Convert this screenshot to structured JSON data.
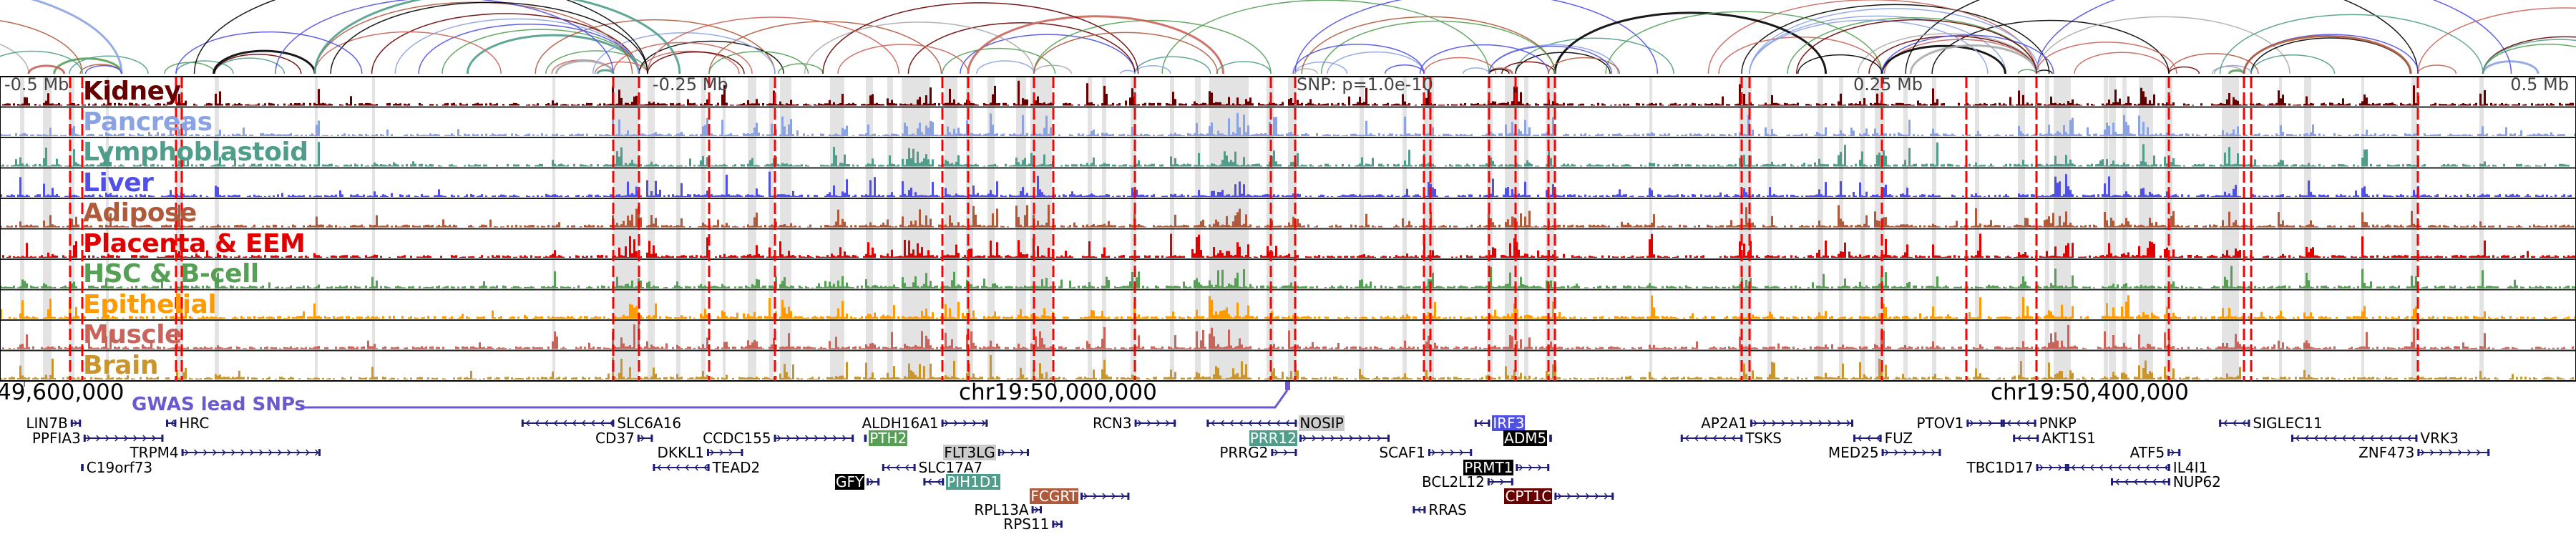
{
  "axis": {
    "left_label": "49,600,000",
    "mid_label": "chr19:50,000,000",
    "right_label": "chr19:50,400,000"
  },
  "offsets": {
    "minus_half": "-0.5 Mb",
    "minus_quarter": "-0.25 Mb",
    "plus_quarter": "0.25 Mb",
    "plus_half": "0.5 Mb"
  },
  "snp_label": "SNP: p=1.0e-10",
  "gwas_label": "GWAS lead SNPs",
  "colors": {
    "gene": "#1e1e78",
    "gwas": "#6a5acd",
    "snp_line": "#ff0000",
    "highlight_band": "#e3e3e3"
  },
  "tissues": [
    {
      "name": "Kidney",
      "color": "#660000"
    },
    {
      "name": "Pancreas",
      "color": "#8ca3e3"
    },
    {
      "name": "Lymphoblastoid",
      "color": "#4f9d8a"
    },
    {
      "name": "Liver",
      "color": "#5050e6"
    },
    {
      "name": "Adipose",
      "color": "#b05a3c"
    },
    {
      "name": "Placenta & EEM",
      "color": "#e00000"
    },
    {
      "name": "HSC & B-cell",
      "color": "#55a055"
    },
    {
      "name": "Epithelial",
      "color": "#ff9a00"
    },
    {
      "name": "Muscle",
      "color": "#c8645a"
    },
    {
      "name": "Brain",
      "color": "#c8962d"
    }
  ],
  "genes": [
    {
      "name": "LIN7B",
      "start": 49618,
      "end": 49622,
      "strand": "+",
      "row": 1,
      "label": "left"
    },
    {
      "name": "HRC",
      "start": 49655,
      "end": 49659,
      "strand": "-",
      "row": 1,
      "label": "right"
    },
    {
      "name": "PPFIA3",
      "start": 49623,
      "end": 49654,
      "strand": "+",
      "row": 2,
      "label": "left"
    },
    {
      "name": "TRPM4",
      "start": 49661,
      "end": 49715,
      "strand": "+",
      "row": 3,
      "label": "left"
    },
    {
      "name": "C19orf73",
      "start": 49622,
      "end": 49623,
      "strand": "-",
      "row": 4,
      "label": "right"
    },
    {
      "name": "SLC6A16",
      "start": 49793,
      "end": 49829,
      "strand": "-",
      "row": 1,
      "label": "right"
    },
    {
      "name": "CD37",
      "start": 49838,
      "end": 49844,
      "strand": "+",
      "row": 2,
      "label": "left"
    },
    {
      "name": "CCDC155",
      "start": 49891,
      "end": 49922,
      "strand": "+",
      "row": 2,
      "label": "left"
    },
    {
      "name": "DKKL1",
      "start": 49865,
      "end": 49879,
      "strand": "+",
      "row": 3,
      "label": "left"
    },
    {
      "name": "TEAD2",
      "start": 49844,
      "end": 49866,
      "strand": "-",
      "row": 4,
      "label": "right"
    },
    {
      "name": "GFY",
      "start": 49927,
      "end": 49932,
      "strand": "+",
      "row": 5,
      "label": "left",
      "box": "#000000",
      "text": "#ffffff"
    },
    {
      "name": "ALDH16A1",
      "start": 49956,
      "end": 49974,
      "strand": "+",
      "row": 1,
      "label": "left"
    },
    {
      "name": "PTH2",
      "start": 49926,
      "end": 49927,
      "strand": "-",
      "row": 2,
      "label": "right",
      "box": "#55a055",
      "text": "#ffffff"
    },
    {
      "name": "FLT3LG",
      "start": 49978,
      "end": 49990,
      "strand": "+",
      "row": 3,
      "label": "left",
      "box": "#cccccc",
      "text": "#000000"
    },
    {
      "name": "SLC17A7",
      "start": 49933,
      "end": 49946,
      "strand": "-",
      "row": 4,
      "label": "right"
    },
    {
      "name": "PIH1D1",
      "start": 49949,
      "end": 49957,
      "strand": "-",
      "row": 5,
      "label": "right",
      "box": "#4f9d8a",
      "text": "#ffffff"
    },
    {
      "name": "FCGRT",
      "start": 50010,
      "end": 50029,
      "strand": "+",
      "row": 6,
      "label": "left",
      "box": "#b05a3c",
      "text": "#ffffff"
    },
    {
      "name": "RPL13A",
      "start": 49991,
      "end": 49995,
      "strand": "+",
      "row": 7,
      "label": "left"
    },
    {
      "name": "RPS11",
      "start": 49999,
      "end": 50003,
      "strand": "+",
      "row": 8,
      "label": "left"
    },
    {
      "name": "RCN3",
      "start": 50031,
      "end": 50047,
      "strand": "+",
      "row": 1,
      "label": "left"
    },
    {
      "name": "NOSIP",
      "start": 50059,
      "end": 50094,
      "strand": "-",
      "row": 1,
      "label": "right",
      "box": "#cccccc",
      "text": "#000000"
    },
    {
      "name": "PRR12",
      "start": 50095,
      "end": 50130,
      "strand": "+",
      "row": 2,
      "label": "left",
      "box": "#4f9d8a",
      "text": "#ffffff"
    },
    {
      "name": "PRRG2",
      "start": 50084,
      "end": 50094,
      "strand": "+",
      "row": 3,
      "label": "left"
    },
    {
      "name": "SCAF1",
      "start": 50145,
      "end": 50162,
      "strand": "+",
      "row": 3,
      "label": "left"
    },
    {
      "name": "IRF3",
      "start": 50163,
      "end": 50169,
      "strand": "-",
      "row": 1,
      "label": "right",
      "box": "#5050e6",
      "text": "#ffffff"
    },
    {
      "name": "ADM5",
      "start": 50192,
      "end": 50193,
      "strand": "+",
      "row": 2,
      "label": "left",
      "box": "#000000",
      "text": "#ffffff"
    },
    {
      "name": "PRMT1",
      "start": 50179,
      "end": 50192,
      "strand": "+",
      "row": 4,
      "label": "left",
      "box": "#000000",
      "text": "#ffffff"
    },
    {
      "name": "BCL2L12",
      "start": 50168,
      "end": 50178,
      "strand": "+",
      "row": 5,
      "label": "left"
    },
    {
      "name": "CPT1C",
      "start": 50194,
      "end": 50217,
      "strand": "+",
      "row": 6,
      "label": "left",
      "box": "#660000",
      "text": "#ffffff"
    },
    {
      "name": "RRAS",
      "start": 50139,
      "end": 50144,
      "strand": "-",
      "row": 7,
      "label": "right"
    },
    {
      "name": "AP2A1",
      "start": 50270,
      "end": 50310,
      "strand": "+",
      "row": 1,
      "label": "left"
    },
    {
      "name": "TSKS",
      "start": 50243,
      "end": 50267,
      "strand": "-",
      "row": 2,
      "label": "right"
    },
    {
      "name": "FUZ",
      "start": 50310,
      "end": 50321,
      "strand": "-",
      "row": 2,
      "label": "right"
    },
    {
      "name": "MED25",
      "start": 50321,
      "end": 50344,
      "strand": "+",
      "row": 3,
      "label": "left"
    },
    {
      "name": "PTOV1",
      "start": 50354,
      "end": 50368,
      "strand": "+",
      "row": 1,
      "label": "left"
    },
    {
      "name": "PNKP",
      "start": 50368,
      "end": 50381,
      "strand": "-",
      "row": 1,
      "label": "right"
    },
    {
      "name": "AKT1S1",
      "start": 50372,
      "end": 50382,
      "strand": "-",
      "row": 2,
      "label": "right"
    },
    {
      "name": "ATF5",
      "start": 50432,
      "end": 50437,
      "strand": "+",
      "row": 3,
      "label": "left"
    },
    {
      "name": "TBC1D17",
      "start": 50381,
      "end": 50393,
      "strand": "+",
      "row": 4,
      "label": "left"
    },
    {
      "name": "IL4I1",
      "start": 50393,
      "end": 50433,
      "strand": "-",
      "row": 4,
      "label": "right"
    },
    {
      "name": "NUP62",
      "start": 50410,
      "end": 50433,
      "strand": "-",
      "row": 5,
      "label": "right"
    },
    {
      "name": "SIGLEC11",
      "start": 50452,
      "end": 50464,
      "strand": "-",
      "row": 1,
      "label": "right"
    },
    {
      "name": "VRK3",
      "start": 50480,
      "end": 50529,
      "strand": "-",
      "row": 2,
      "label": "right"
    },
    {
      "name": "ZNF473",
      "start": 50529,
      "end": 50557,
      "strand": "+",
      "row": 3,
      "label": "left"
    }
  ]
}
